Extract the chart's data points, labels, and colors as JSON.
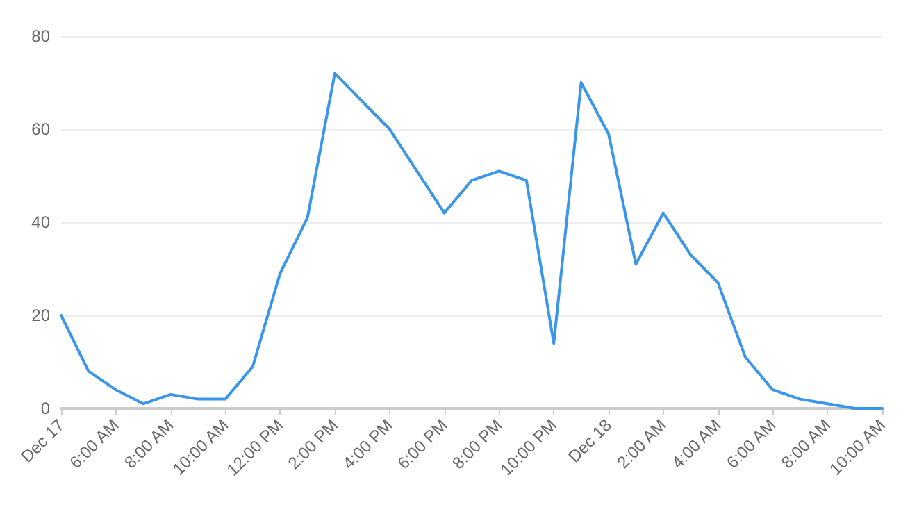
{
  "chart_data": {
    "type": "line",
    "categories": [
      "Dec 17",
      null,
      "6:00 AM",
      null,
      "8:00 AM",
      null,
      "10:00 AM",
      null,
      "12:00 PM",
      null,
      "2:00 PM",
      null,
      "4:00 PM",
      null,
      "6:00 PM",
      null,
      "8:00 PM",
      null,
      "10:00 PM",
      null,
      "Dec 18",
      null,
      "2:00 AM",
      null,
      "4:00 AM",
      null,
      "6:00 AM",
      null,
      "8:00 AM",
      null,
      "10:00 AM"
    ],
    "series": [
      {
        "color": "#3996ea",
        "values": [
          20,
          8,
          4,
          1,
          3,
          2,
          2,
          9,
          29,
          41,
          72,
          66,
          60,
          51,
          42,
          49,
          51,
          49,
          14,
          70,
          59,
          31,
          42,
          33,
          27,
          11,
          4,
          2,
          1,
          0,
          0
        ]
      }
    ],
    "ylim": [
      0,
      80
    ],
    "yticks": [
      0,
      20,
      40,
      60,
      80
    ],
    "grid": "y",
    "marker": "none",
    "line_style": "solid"
  }
}
